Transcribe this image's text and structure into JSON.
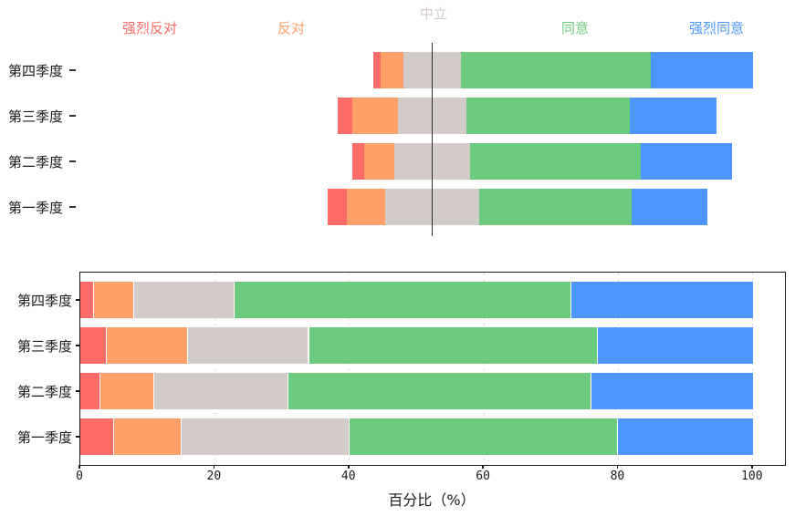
{
  "figure": {
    "background": "#ffffff",
    "text_color": "#1a1a1a",
    "axis_color": "#1a1a1a",
    "gridline_color": "#e2e2e2",
    "center_line_color": "#2f2f2f"
  },
  "chart_data": [
    {
      "type": "bar",
      "subtype": "diverging-stacked-horizontal-likert",
      "title": "",
      "categories": [
        "第一季度",
        "第二季度",
        "第三季度",
        "第四季度"
      ],
      "category_keys": [
        "q1",
        "q2",
        "q3",
        "q4"
      ],
      "display_order_top_to_bottom": [
        "第四季度",
        "第三季度",
        "第二季度",
        "第一季度"
      ],
      "series": [
        {
          "key": "strongly-disagree",
          "name": "强烈反对",
          "color": "#FD6C66",
          "values": [
            5,
            3,
            4,
            2
          ]
        },
        {
          "key": "disagree",
          "name": "反对",
          "color": "#FFA068",
          "values": [
            10,
            8,
            12,
            6
          ]
        },
        {
          "key": "neutral",
          "name": "中立",
          "color": "#D3CBC7",
          "values": [
            25,
            20,
            18,
            15
          ]
        },
        {
          "key": "agree",
          "name": "同意",
          "color": "#6CCB7E",
          "values": [
            40,
            45,
            43,
            50
          ]
        },
        {
          "key": "strongly-agree",
          "name": "强烈同意",
          "color": "#4D96FF",
          "values": [
            20,
            24,
            23,
            27
          ]
        }
      ],
      "legend_position": "top",
      "neutral_centered_on_vertical_line": true,
      "grid": false,
      "unit": "percent"
    },
    {
      "type": "bar",
      "subtype": "stacked-horizontal-100pct",
      "title": "",
      "categories": [
        "第一季度",
        "第二季度",
        "第三季度",
        "第四季度"
      ],
      "category_keys": [
        "q1",
        "q2",
        "q3",
        "q4"
      ],
      "display_order_top_to_bottom": [
        "第四季度",
        "第三季度",
        "第二季度",
        "第一季度"
      ],
      "series": [
        {
          "key": "strongly-disagree",
          "name": "强烈反对",
          "color": "#FD6C66",
          "values": [
            5,
            3,
            4,
            2
          ]
        },
        {
          "key": "disagree",
          "name": "反对",
          "color": "#FFA068",
          "values": [
            10,
            8,
            12,
            6
          ]
        },
        {
          "key": "neutral",
          "name": "中立",
          "color": "#D3CBC7",
          "values": [
            25,
            20,
            18,
            15
          ]
        },
        {
          "key": "agree",
          "name": "同意",
          "color": "#6CCB7E",
          "values": [
            40,
            45,
            43,
            50
          ]
        },
        {
          "key": "strongly-agree",
          "name": "强烈同意",
          "color": "#4D96FF",
          "values": [
            20,
            24,
            23,
            27
          ]
        }
      ],
      "xlabel": "百分比（%）",
      "xticks": [
        0,
        20,
        40,
        60,
        80,
        100
      ],
      "xlim": [
        0,
        105
      ],
      "grid": true,
      "segment_edge_color": "#ffffff",
      "legend": false,
      "unit": "percent"
    }
  ]
}
